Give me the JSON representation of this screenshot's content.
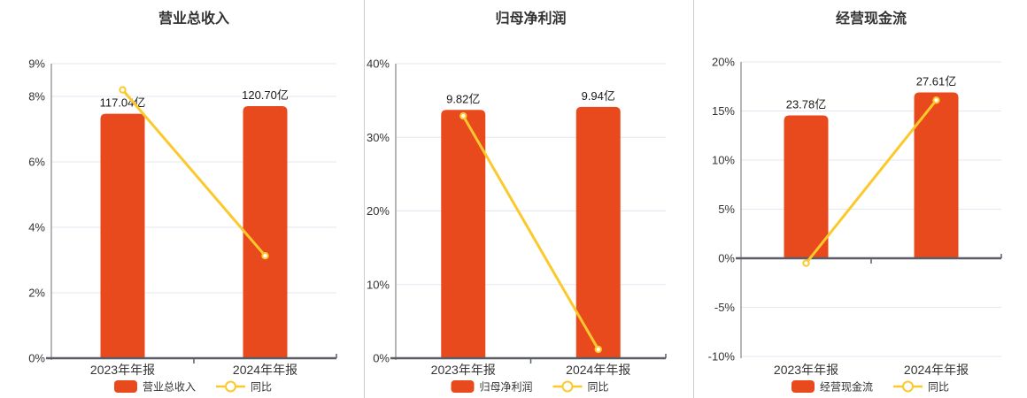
{
  "colors": {
    "bar": "#E84A1E",
    "line": "#FCC92C",
    "grid": "#E2E8F2",
    "zero_axis": "#5A5E66",
    "y_axis_line": "#6E6E6E",
    "separator": "#CCCCCC",
    "title_text": "#333333",
    "tick_text": "#333333",
    "value_text": "#1A1A1A",
    "legend_text": "#333333",
    "marker_fill": "#FFFFFF",
    "background": "#FFFFFF"
  },
  "chart_data": [
    {
      "type": "bar",
      "title": "营业总收入",
      "categories": [
        "2023年年报",
        "2024年年报"
      ],
      "series": [
        {
          "name": "营业总收入",
          "kind": "bar",
          "unit": "亿",
          "values": [
            117.04,
            120.7
          ],
          "labels": [
            "117.04亿",
            "120.70亿"
          ]
        },
        {
          "name": "同比",
          "kind": "line",
          "unit": "%",
          "values": [
            8.2,
            3.13
          ]
        }
      ],
      "y_axis": {
        "min": 0,
        "max": 9,
        "tick_values": [
          9,
          8,
          6,
          4,
          2,
          0
        ],
        "tick_labels": [
          "9%",
          "8%",
          "6%",
          "4%",
          "2%",
          "0%"
        ]
      },
      "bar_axis": {
        "min": 0,
        "max": 141
      },
      "legend": [
        "营业总收入",
        "同比"
      ],
      "legend_position": "bottom",
      "grid": true
    },
    {
      "type": "bar",
      "title": "归母净利润",
      "categories": [
        "2023年年报",
        "2024年年报"
      ],
      "series": [
        {
          "name": "归母净利润",
          "kind": "bar",
          "unit": "亿",
          "values": [
            9.82,
            9.94
          ],
          "labels": [
            "9.82亿",
            "9.94亿"
          ]
        },
        {
          "name": "同比",
          "kind": "line",
          "unit": "%",
          "values": [
            32.9,
            1.2
          ]
        }
      ],
      "y_axis": {
        "min": 0,
        "max": 40,
        "tick_values": [
          40,
          30,
          20,
          10,
          0
        ],
        "tick_labels": [
          "40%",
          "30%",
          "20%",
          "10%",
          "0%"
        ]
      },
      "bar_axis": {
        "min": 0,
        "max": 11.65
      },
      "legend": [
        "归母净利润",
        "同比"
      ],
      "legend_position": "bottom",
      "grid": true
    },
    {
      "type": "bar",
      "title": "经营现金流",
      "categories": [
        "2023年年报",
        "2024年年报"
      ],
      "series": [
        {
          "name": "经营现金流",
          "kind": "bar",
          "unit": "亿",
          "values": [
            23.78,
            27.61
          ],
          "labels": [
            "23.78亿",
            "27.61亿"
          ]
        },
        {
          "name": "同比",
          "kind": "line",
          "unit": "%",
          "values": [
            -0.5,
            16.1
          ]
        }
      ],
      "y_axis": {
        "min": -10,
        "max": 20,
        "tick_values": [
          20,
          15,
          10,
          5,
          0,
          -5,
          -10
        ],
        "tick_labels": [
          "20%",
          "15%",
          "10%",
          "5%",
          "0%",
          "-5%",
          "-10%"
        ]
      },
      "bar_axis": {
        "min": -16.35,
        "max": 32.7
      },
      "legend": [
        "经营现金流",
        "同比"
      ],
      "legend_position": "bottom",
      "grid": true
    }
  ]
}
